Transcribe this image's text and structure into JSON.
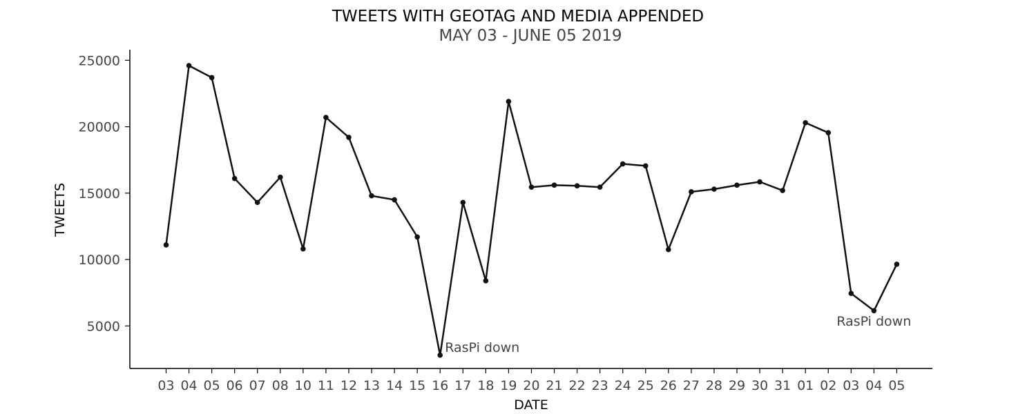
{
  "chart_data": {
    "type": "line",
    "title": "TWEETS WITH GEOTAG AND MEDIA APPENDED",
    "subtitle": "MAY 03 - JUNE 05 2019",
    "xlabel": "DATE",
    "ylabel": "TWEETS",
    "categories": [
      "03",
      "04",
      "05",
      "06",
      "07",
      "08",
      "10",
      "11",
      "12",
      "13",
      "14",
      "15",
      "16",
      "17",
      "18",
      "19",
      "20",
      "21",
      "22",
      "23",
      "24",
      "25",
      "26",
      "27",
      "28",
      "29",
      "30",
      "31",
      "01",
      "02",
      "03",
      "04",
      "05"
    ],
    "series": [
      {
        "values": [
          11100,
          24600,
          23700,
          16100,
          14300,
          16200,
          10800,
          20700,
          19200,
          14800,
          14500,
          11700,
          2800,
          14300,
          8400,
          21900,
          15450,
          15600,
          15550,
          15450,
          17200,
          17050,
          10750,
          15100,
          15300,
          15600,
          15850,
          15200,
          20300,
          19550,
          7450,
          6150,
          9650
        ],
        "color": "#111111"
      }
    ],
    "yticks": [
      5000,
      10000,
      15000,
      20000,
      25000
    ],
    "ylim": [
      1800,
      25800
    ],
    "grid": false,
    "annotations": [
      {
        "text": "RasPi down",
        "category_index": 12,
        "value": 2800
      },
      {
        "text": "RasPi down",
        "category_index": 30,
        "value": 7450
      }
    ]
  }
}
